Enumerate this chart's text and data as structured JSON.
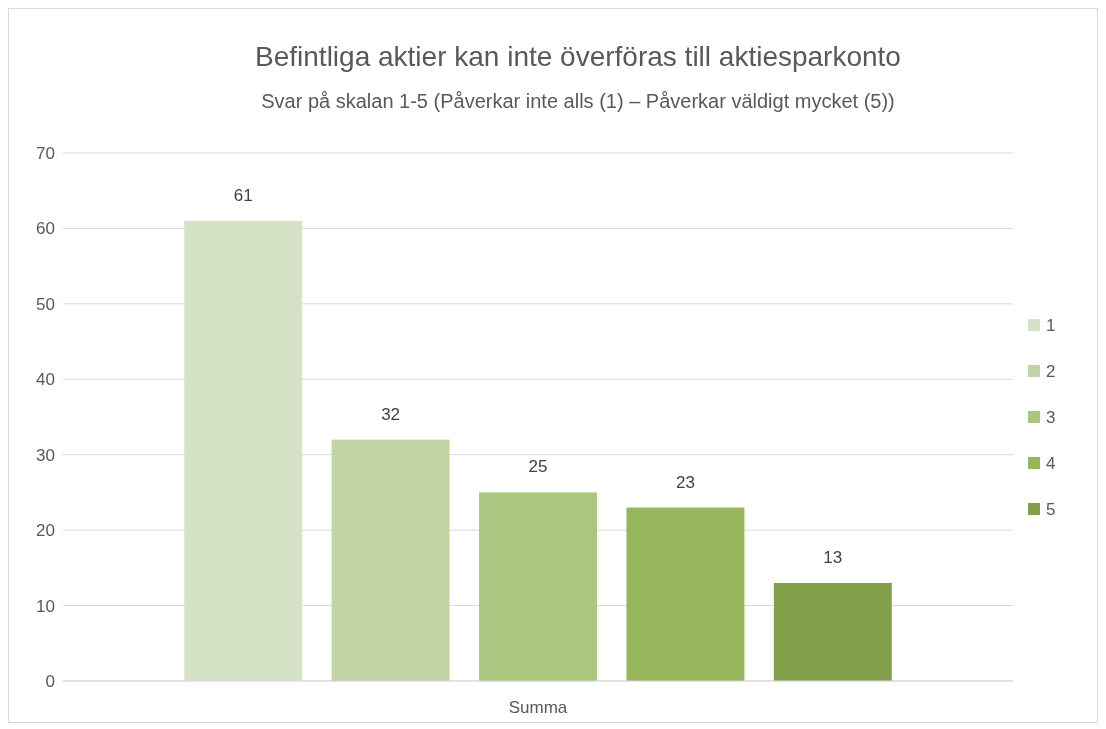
{
  "chart_data": {
    "type": "bar",
    "title": "Befintliga aktier kan inte överföras till aktiesparkonto",
    "subtitle": "Svar på skalan 1-5 (Påverkar inte alls (1) – Påverkar väldigt mycket (5))",
    "categories": [
      "Summa"
    ],
    "series": [
      {
        "name": "1",
        "color": "#d6e2c5",
        "values": [
          61
        ]
      },
      {
        "name": "2",
        "color": "#c1d4a3",
        "values": [
          32
        ]
      },
      {
        "name": "3",
        "color": "#abc67f",
        "values": [
          25
        ]
      },
      {
        "name": "4",
        "color": "#97b65b",
        "values": [
          23
        ]
      },
      {
        "name": "5",
        "color": "#82a04a",
        "values": [
          13
        ]
      }
    ],
    "ylim": [
      0,
      70
    ],
    "yticks": [
      0,
      10,
      20,
      30,
      40,
      50,
      60,
      70
    ],
    "grid": "y",
    "legend": "right",
    "data_labels": true
  }
}
